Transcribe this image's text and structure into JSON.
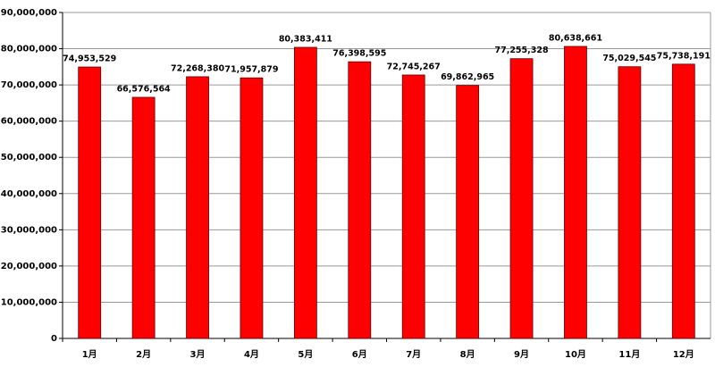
{
  "chart_data": {
    "type": "bar",
    "categories": [
      "1月",
      "2月",
      "3月",
      "4月",
      "5月",
      "6月",
      "7月",
      "8月",
      "9月",
      "10月",
      "11月",
      "12月"
    ],
    "values": [
      74953529,
      66576564,
      72268380,
      71957879,
      80383411,
      76398595,
      72745267,
      69862965,
      77255328,
      80638661,
      75029545,
      75738191
    ],
    "value_labels": [
      "74,953,529",
      "66,576,564",
      "72,268,380",
      "71,957,879",
      "80,383,411",
      "76,398,595",
      "72,745,267",
      "69,862,965",
      "77,255,328",
      "80,638,661",
      "75,029,545",
      "75,738,191"
    ],
    "color": "#ff0000",
    "ylim": [
      0,
      90000000
    ],
    "yticks": [
      {
        "value": 0,
        "label": "0"
      },
      {
        "value": 10000000,
        "label": "10,000,000"
      },
      {
        "value": 20000000,
        "label": "20,000,000"
      },
      {
        "value": 30000000,
        "label": "30,000,000"
      },
      {
        "value": 40000000,
        "label": "40,000,000"
      },
      {
        "value": 50000000,
        "label": "50,000,000"
      },
      {
        "value": 60000000,
        "label": "60,000,000"
      },
      {
        "value": 70000000,
        "label": "70,000,000"
      },
      {
        "value": 80000000,
        "label": "80,000,000"
      },
      {
        "value": 90000000,
        "label": "90,000,000"
      }
    ],
    "grid": true
  }
}
